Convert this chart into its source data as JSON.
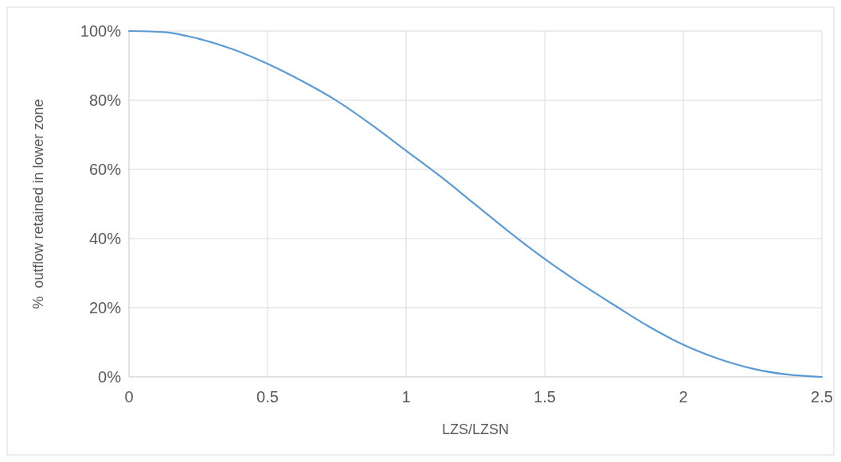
{
  "chart_data": {
    "type": "line",
    "xlabel": "LZS/LZSN",
    "ylabel": "%  outflow retained in lower zone",
    "x": [
      0,
      0.125,
      0.25,
      0.375,
      0.5,
      0.625,
      0.75,
      0.875,
      1,
      1.125,
      1.25,
      1.375,
      1.5,
      1.625,
      1.75,
      1.875,
      2,
      2.125,
      2.25,
      2.375,
      2.5
    ],
    "series": [
      {
        "color": "#5b9bd5",
        "values": [
          100,
          99.7,
          97.8,
          94.7,
          90.5,
          85.5,
          79.8,
          72.9,
          65.4,
          57.9,
          49.8,
          41.7,
          34.1,
          27.2,
          20.8,
          14.6,
          9.3,
          5.3,
          2.4,
          0.7,
          0
        ]
      }
    ],
    "xlim": [
      0,
      2.5
    ],
    "xticks": [
      0,
      0.5,
      1,
      1.5,
      2,
      2.5
    ],
    "ylim": [
      0,
      100
    ],
    "yticks": [
      {
        "value": 0,
        "label": "0%"
      },
      {
        "value": 20,
        "label": "20%"
      },
      {
        "value": 40,
        "label": "40%"
      },
      {
        "value": 60,
        "label": "60%"
      },
      {
        "value": 80,
        "label": "80%"
      },
      {
        "value": 100,
        "label": "100%"
      }
    ],
    "grid": true,
    "marker": "none",
    "line_style": "solid"
  }
}
